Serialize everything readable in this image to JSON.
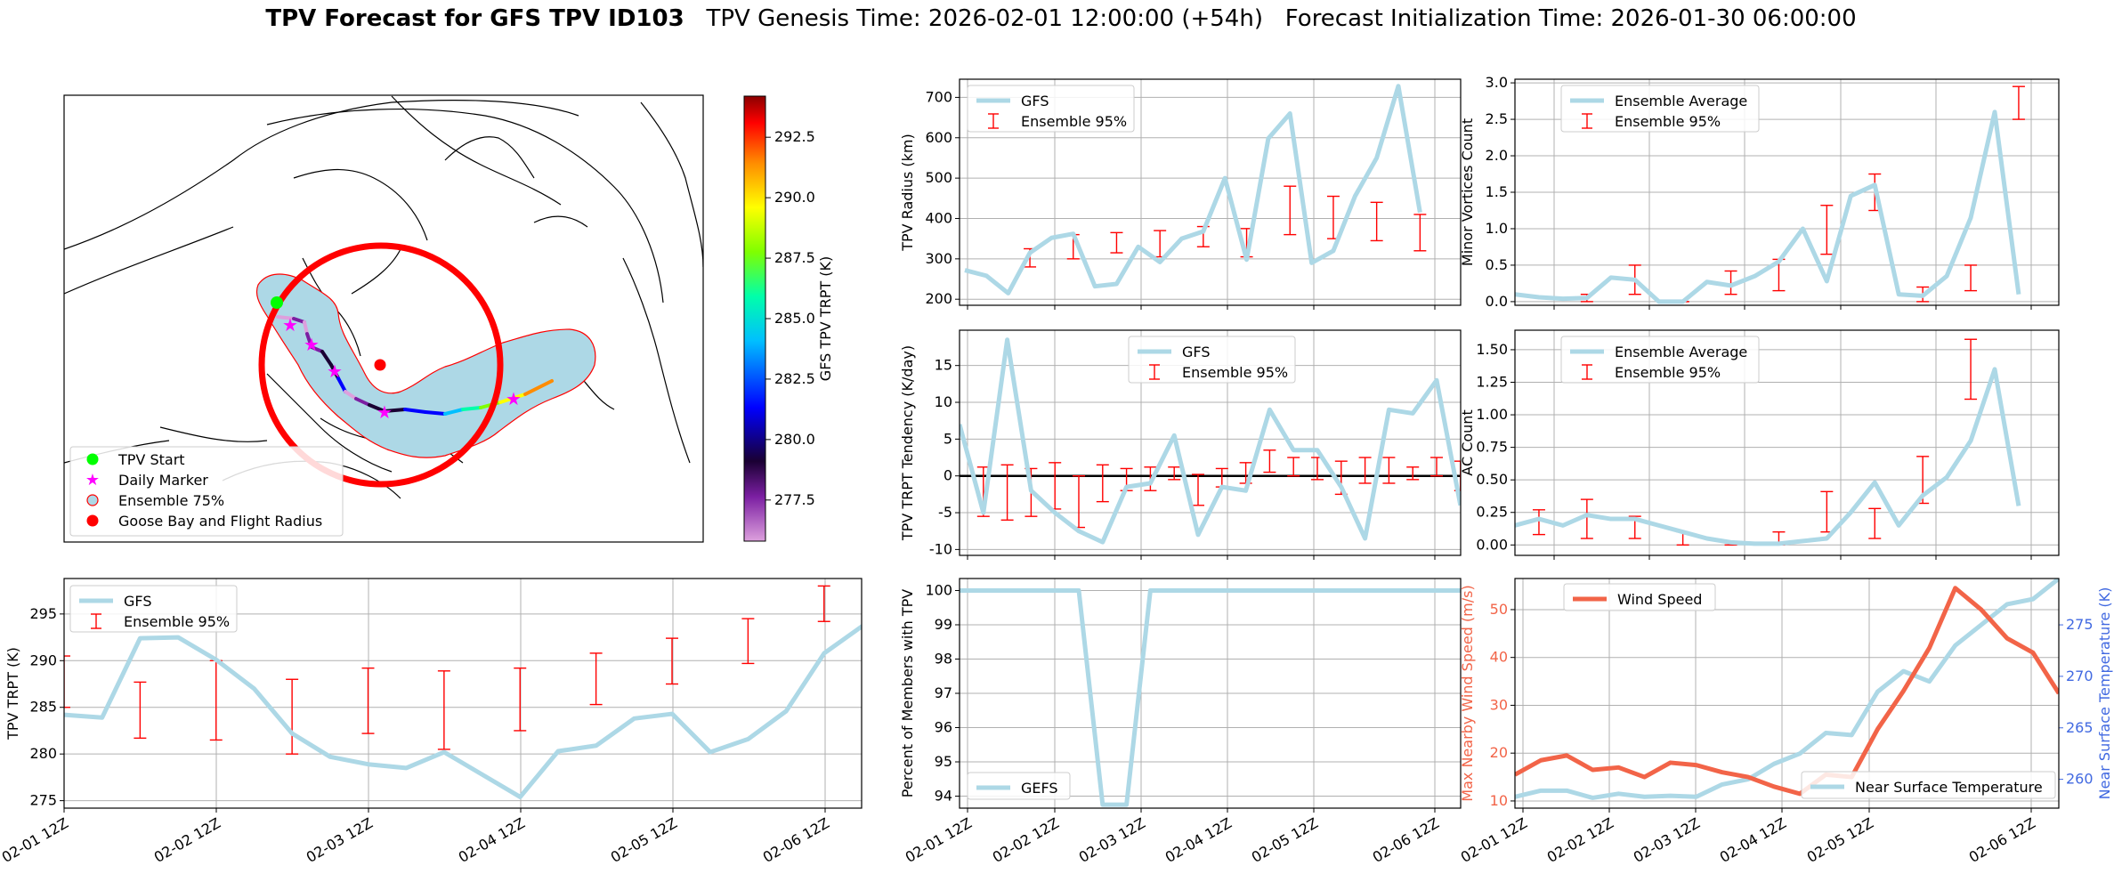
{
  "suptitle": {
    "bold": "TPV Forecast for GFS TPV ID103",
    "rest": "   TPV Genesis Time: 2026-02-01 12:00:00 (+54h)   Forecast Initialization Time: 2026-01-30 06:00:00"
  },
  "colors": {
    "light_blue": "#add8e6",
    "red": "#ff0000",
    "wind": "#f26448",
    "temp_axis": "#4169e1",
    "magenta": "#ff00ff",
    "green": "#00ff00"
  },
  "x_ticks": [
    "02-01 12Z",
    "02-02 12Z",
    "02-03 12Z",
    "02-04 12Z",
    "02-05 12Z",
    "02-06 12Z"
  ],
  "chart_data": [
    {
      "id": "map",
      "type": "map",
      "legend": [
        "TPV Start",
        "Daily Marker",
        "Ensemble 75%",
        "Goose Bay and Flight Radius"
      ],
      "colorbar": {
        "label": "GFS TPV TRPT (K)",
        "ticks": [
          "277.5",
          "280.0",
          "282.5",
          "285.0",
          "287.5",
          "290.0",
          "292.5"
        ],
        "range": [
          275.8,
          294.2
        ]
      },
      "track_trpt": [
        285.5,
        277,
        279,
        277.5,
        278.5,
        279,
        280,
        281,
        282,
        276.5,
        279,
        279.5,
        280.5,
        282,
        283,
        285,
        287,
        289,
        291,
        293
      ]
    },
    {
      "id": "radius",
      "type": "line",
      "ylabel": "TPV Radius (km)",
      "legend": [
        "GFS",
        "Ensemble 95%"
      ],
      "yticks": [
        200,
        300,
        400,
        500,
        600,
        700
      ],
      "ylim": [
        185,
        745
      ],
      "series": [
        {
          "name": "GFS",
          "values": [
            272,
            258,
            215,
            315,
            352,
            362,
            232,
            238,
            330,
            292,
            350,
            368,
            500,
            298,
            598,
            660,
            290,
            320,
            455,
            550,
            728,
            415
          ]
        }
      ],
      "ensemble_95": [
        [
          -1,
          280,
          350
        ],
        [
          3,
          280,
          325
        ],
        [
          5,
          300,
          360
        ],
        [
          7,
          315,
          365
        ],
        [
          9,
          305,
          370
        ],
        [
          11,
          330,
          380
        ],
        [
          13,
          305,
          375
        ],
        [
          15,
          360,
          480
        ],
        [
          17,
          350,
          455
        ],
        [
          19,
          345,
          440
        ],
        [
          21,
          320,
          410
        ]
      ]
    },
    {
      "id": "minor_vortices",
      "type": "line",
      "ylabel": "Minor Vortices Count",
      "legend": [
        "Ensemble Average",
        "Ensemble 95%"
      ],
      "yticks": [
        0.0,
        0.5,
        1.0,
        1.5,
        2.0,
        2.5,
        3.0
      ],
      "ylim": [
        -0.05,
        3.05
      ],
      "series": [
        {
          "name": "Ensemble Average",
          "values": [
            0.1,
            0.06,
            0.04,
            0.05,
            0.33,
            0.3,
            0.0,
            0.0,
            0.27,
            0.22,
            0.35,
            0.55,
            1.0,
            0.28,
            1.45,
            1.6,
            0.1,
            0.08,
            0.35,
            1.15,
            2.6,
            0.1
          ]
        }
      ],
      "ensemble_95": [
        [
          -1,
          0.0,
          0.2
        ],
        [
          3,
          0.0,
          0.1
        ],
        [
          5,
          0.1,
          0.5
        ],
        [
          7,
          0.0,
          0.0
        ],
        [
          9,
          0.1,
          0.42
        ],
        [
          11,
          0.15,
          0.58
        ],
        [
          13,
          0.65,
          1.32
        ],
        [
          15,
          1.25,
          1.75
        ],
        [
          17,
          0.0,
          0.2
        ],
        [
          19,
          0.15,
          0.5
        ],
        [
          21,
          2.5,
          2.95
        ]
      ]
    },
    {
      "id": "tendency",
      "type": "line",
      "ylabel": "TPV TRPT Tendency (K/day)",
      "legend": [
        "GFS",
        "Ensemble 95%"
      ],
      "yticks": [
        -10,
        -5,
        0,
        5,
        10,
        15
      ],
      "ylim": [
        -10.8,
        19.8
      ],
      "series": [
        {
          "name": "GFS",
          "values": [
            7,
            -5,
            18.5,
            -2,
            -5,
            -7.5,
            -9,
            -1.5,
            -1,
            5.5,
            -8,
            -1.5,
            -2,
            9,
            3.5,
            3.5,
            -1.5,
            -8.5,
            9,
            8.5,
            13,
            -4
          ]
        }
      ],
      "ensemble_95": [
        [
          -1,
          -2.5,
          3
        ],
        [
          1,
          -5.5,
          1.2
        ],
        [
          2,
          -6,
          1.5
        ],
        [
          3,
          -5.5,
          1
        ],
        [
          4,
          -4.5,
          1.8
        ],
        [
          5,
          -7,
          0
        ],
        [
          6,
          -3.5,
          1.5
        ],
        [
          7,
          -2,
          1
        ],
        [
          8,
          -2,
          1.2
        ],
        [
          9,
          -0.5,
          1.2
        ],
        [
          10,
          -4,
          0.2
        ],
        [
          11,
          -1.5,
          1
        ],
        [
          12,
          -1,
          1.8
        ],
        [
          13,
          0.5,
          3.5
        ],
        [
          14,
          0,
          2.5
        ],
        [
          15,
          -0.5,
          2.5
        ],
        [
          16,
          -2.5,
          2
        ],
        [
          17,
          -1,
          2.5
        ],
        [
          18,
          -1,
          2.5
        ],
        [
          19,
          -0.5,
          1.2
        ],
        [
          20,
          0,
          2.5
        ],
        [
          21,
          -2,
          2
        ]
      ]
    },
    {
      "id": "ac_count",
      "type": "line",
      "ylabel": "AC Count",
      "legend": [
        "Ensemble Average",
        "Ensemble 95%"
      ],
      "yticks": [
        0.0,
        0.25,
        0.5,
        0.75,
        1.0,
        1.25,
        1.5
      ],
      "ylim": [
        -0.08,
        1.65
      ],
      "series": [
        {
          "name": "Ensemble Average",
          "values": [
            0.15,
            0.2,
            0.15,
            0.23,
            0.2,
            0.2,
            0.15,
            0.1,
            0.05,
            0.02,
            0.01,
            0.01,
            0.03,
            0.05,
            0.25,
            0.48,
            0.15,
            0.38,
            0.52,
            0.8,
            1.35,
            0.3
          ]
        }
      ],
      "ensemble_95": [
        [
          -1,
          0.05,
          0.2
        ],
        [
          1,
          0.08,
          0.27
        ],
        [
          3,
          0.05,
          0.35
        ],
        [
          5,
          0.05,
          0.22
        ],
        [
          7,
          0.0,
          0.1
        ],
        [
          9,
          0.0,
          0.02
        ],
        [
          11,
          0.0,
          0.1
        ],
        [
          13,
          0.1,
          0.41
        ],
        [
          15,
          0.05,
          0.28
        ],
        [
          17,
          0.32,
          0.68
        ],
        [
          19,
          1.12,
          1.58
        ]
      ]
    },
    {
      "id": "trpt",
      "type": "line",
      "ylabel": "TPV TRPT (K)",
      "legend": [
        "GFS",
        "Ensemble 95%"
      ],
      "yticks": [
        275,
        280,
        285,
        290,
        295
      ],
      "ylim": [
        274.2,
        298.8
      ],
      "series": [
        {
          "name": "GFS",
          "values": [
            284.2,
            283.9,
            292.4,
            292.5,
            290.1,
            287,
            282.2,
            279.7,
            278.9,
            278.5,
            280.2,
            277.8,
            275.4,
            280.3,
            280.9,
            283.8,
            284.3,
            280.2,
            281.6,
            284.6,
            290.8,
            293.7
          ]
        }
      ],
      "ensemble_95": [
        [
          0,
          285,
          290.5
        ],
        [
          2.5,
          281.7,
          287.7
        ],
        [
          5,
          281.5,
          290
        ],
        [
          7.5,
          280,
          288
        ],
        [
          10,
          282.2,
          289.2
        ],
        [
          12.5,
          280.5,
          288.9
        ],
        [
          15,
          282.5,
          289.2
        ],
        [
          17.5,
          285.3,
          290.8
        ],
        [
          20,
          287.5,
          292.4
        ],
        [
          22.5,
          289.7,
          294.5
        ],
        [
          25,
          294.2,
          298
        ]
      ]
    },
    {
      "id": "percent_members",
      "type": "line",
      "ylabel": "Percent of Members with TPV",
      "legend": [
        "GEFS"
      ],
      "yticks": [
        94,
        95,
        96,
        97,
        98,
        99,
        100
      ],
      "ylim": [
        93.65,
        100.35
      ],
      "series": [
        {
          "name": "GEFS",
          "values": [
            100,
            100,
            100,
            100,
            100,
            100,
            93.75,
            93.75,
            100,
            100,
            100,
            100,
            100,
            100,
            100,
            100,
            100,
            100,
            100,
            100,
            100,
            100
          ]
        }
      ]
    },
    {
      "id": "wind_temp",
      "type": "line",
      "ylabel": "Max Nearby Wind Speed (m/s)",
      "ylabel2": "Near Surface Temperature (K)",
      "legend": [
        "Wind Speed",
        "Near Surface Temperature"
      ],
      "yticks": [
        10,
        20,
        30,
        40,
        50
      ],
      "yticks2": [
        260,
        265,
        270,
        275
      ],
      "ylim": [
        8.5,
        56.5
      ],
      "ylim2": [
        257.2,
        279.5
      ],
      "series": [
        {
          "name": "Wind Speed",
          "values": [
            15.5,
            18.5,
            19.5,
            16.5,
            17,
            15,
            18,
            17.5,
            16,
            15,
            13,
            11.5,
            15.5,
            15,
            25,
            33,
            42,
            54.5,
            50,
            44,
            41,
            32.5
          ]
        },
        {
          "name": "Near Surface Temperature",
          "values": [
            258.3,
            258.9,
            258.9,
            258.2,
            258.6,
            258.3,
            258.4,
            258.3,
            259.5,
            260,
            261.5,
            262.5,
            264.5,
            264.3,
            268.5,
            270.5,
            269.5,
            273,
            275,
            277,
            277.5,
            279.5
          ]
        }
      ]
    }
  ]
}
